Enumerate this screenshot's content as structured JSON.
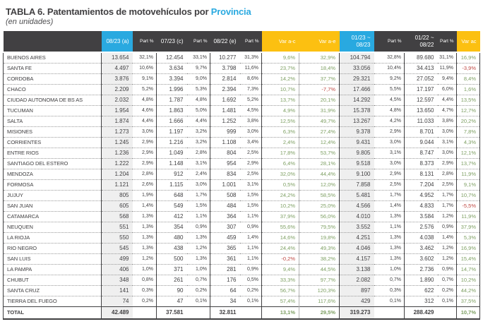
{
  "title": {
    "prefix": "TABLA 6. Patentamientos de motovehículos por ",
    "highlight": "Provincia",
    "subtitle": "(en unidades)"
  },
  "colors": {
    "header_dark": "#414042",
    "accent_cyan": "#29a9e0",
    "accent_yellow": "#fcc011",
    "positive_green": "#7d9f62",
    "negative_red": "#bf4742",
    "column_shading": "#efefef"
  },
  "table": {
    "columns": [
      {
        "id": "province",
        "label": "",
        "type": "name",
        "header_bg": "dark",
        "shaded": false
      },
      {
        "id": "m0823",
        "label": "08/23 (a)",
        "type": "num",
        "header_bg": "cyan",
        "shaded": true
      },
      {
        "id": "part_a",
        "label": "Part %",
        "type": "part",
        "header_bg": "dark",
        "shaded": false
      },
      {
        "id": "m0723",
        "label": "07/23 (c)",
        "type": "num",
        "header_bg": "dark",
        "shaded": false
      },
      {
        "id": "part_c",
        "label": "Part %",
        "type": "part",
        "header_bg": "dark",
        "shaded": false
      },
      {
        "id": "m0822",
        "label": "08/22 (e)",
        "type": "num",
        "header_bg": "dark",
        "shaded": false
      },
      {
        "id": "part_e",
        "label": "Part %",
        "type": "part",
        "header_bg": "dark",
        "shaded": false
      },
      {
        "id": "var_a_c",
        "label": "Var a-c",
        "type": "var",
        "header_bg": "yellow",
        "shaded": false
      },
      {
        "id": "var_a_e",
        "label": "Var a-e",
        "type": "var",
        "header_bg": "yellow",
        "shaded": false
      },
      {
        "id": "ytd_23",
        "label": "01/23 ~\n08/23",
        "type": "num",
        "header_bg": "cyan",
        "shaded": true
      },
      {
        "id": "part_ytd23",
        "label": "Part %",
        "type": "part",
        "header_bg": "dark",
        "shaded": false
      },
      {
        "id": "ytd_22",
        "label": "01/22 ~\n08/22",
        "type": "num",
        "header_bg": "dark",
        "shaded": false
      },
      {
        "id": "part_ytd22",
        "label": "Part %",
        "type": "part",
        "header_bg": "dark",
        "shaded": false
      },
      {
        "id": "var_ac",
        "label": "Var ac",
        "type": "var",
        "header_bg": "yellow",
        "shaded": false
      }
    ],
    "rows": [
      [
        "BUENOS AIRES",
        "13.654",
        "32,1%",
        "12.454",
        "33,1%",
        "10.277",
        "31,3%",
        "9,6%",
        "32,9%",
        "104.794",
        "32,8%",
        "89.680",
        "31,1%",
        "16,9%"
      ],
      [
        "SANTA FE",
        "4.497",
        "10,6%",
        "3.634",
        "9,7%",
        "3.798",
        "11,6%",
        "23,7%",
        "18,4%",
        "33.056",
        "10,4%",
        "34.413",
        "11,9%",
        "-3,9%"
      ],
      [
        "CORDOBA",
        "3.876",
        "9,1%",
        "3.394",
        "9,0%",
        "2.814",
        "8,6%",
        "14,2%",
        "37,7%",
        "29.321",
        "9,2%",
        "27.052",
        "9,4%",
        "8,4%"
      ],
      [
        "CHACO",
        "2.209",
        "5,2%",
        "1.996",
        "5,3%",
        "2.394",
        "7,3%",
        "10,7%",
        "-7,7%",
        "17.466",
        "5,5%",
        "17.197",
        "6,0%",
        "1,6%"
      ],
      [
        "CIUDAD AUTONOMA DE BS AS",
        "2.032",
        "4,8%",
        "1.787",
        "4,8%",
        "1.692",
        "5,2%",
        "13,7%",
        "20,1%",
        "14.292",
        "4,5%",
        "12.597",
        "4,4%",
        "13,5%"
      ],
      [
        "TUCUMAN",
        "1.954",
        "4,6%",
        "1.863",
        "5,0%",
        "1.481",
        "4,5%",
        "4,9%",
        "31,9%",
        "15.378",
        "4,8%",
        "13.650",
        "4,7%",
        "12,7%"
      ],
      [
        "SALTA",
        "1.874",
        "4,4%",
        "1.666",
        "4,4%",
        "1.252",
        "3,8%",
        "12,5%",
        "49,7%",
        "13.267",
        "4,2%",
        "11.033",
        "3,8%",
        "20,2%"
      ],
      [
        "MISIONES",
        "1.273",
        "3,0%",
        "1.197",
        "3,2%",
        "999",
        "3,0%",
        "6,3%",
        "27,4%",
        "9.378",
        "2,9%",
        "8.701",
        "3,0%",
        "7,8%"
      ],
      [
        "CORRIENTES",
        "1.245",
        "2,9%",
        "1.216",
        "3,2%",
        "1.108",
        "3,4%",
        "2,4%",
        "12,4%",
        "9.431",
        "3,0%",
        "9.044",
        "3,1%",
        "4,3%"
      ],
      [
        "ENTRE RIOS",
        "1.236",
        "2,9%",
        "1.049",
        "2,8%",
        "804",
        "2,5%",
        "17,8%",
        "53,7%",
        "9.805",
        "3,1%",
        "8.747",
        "3,0%",
        "12,1%"
      ],
      [
        "SANTIAGO DEL ESTERO",
        "1.222",
        "2,9%",
        "1.148",
        "3,1%",
        "954",
        "2,9%",
        "6,4%",
        "28,1%",
        "9.518",
        "3,0%",
        "8.373",
        "2,9%",
        "13,7%"
      ],
      [
        "MENDOZA",
        "1.204",
        "2,8%",
        "912",
        "2,4%",
        "834",
        "2,5%",
        "32,0%",
        "44,4%",
        "9.100",
        "2,9%",
        "8.131",
        "2,8%",
        "11,9%"
      ],
      [
        "FORMOSA",
        "1.121",
        "2,6%",
        "1.115",
        "3,0%",
        "1.001",
        "3,1%",
        "0,5%",
        "12,0%",
        "7.858",
        "2,5%",
        "7.204",
        "2,5%",
        "9,1%"
      ],
      [
        "JUJUY",
        "805",
        "1,9%",
        "648",
        "1,7%",
        "508",
        "1,5%",
        "24,2%",
        "58,5%",
        "5.481",
        "1,7%",
        "4.952",
        "1,7%",
        "10,7%"
      ],
      [
        "SAN JUAN",
        "605",
        "1,4%",
        "549",
        "1,5%",
        "484",
        "1,5%",
        "10,2%",
        "25,0%",
        "4.566",
        "1,4%",
        "4.833",
        "1,7%",
        "-5,5%"
      ],
      [
        "CATAMARCA",
        "568",
        "1,3%",
        "412",
        "1,1%",
        "364",
        "1,1%",
        "37,9%",
        "56,0%",
        "4.010",
        "1,3%",
        "3.584",
        "1,2%",
        "11,9%"
      ],
      [
        "NEUQUEN",
        "551",
        "1,3%",
        "354",
        "0,9%",
        "307",
        "0,9%",
        "55,6%",
        "79,5%",
        "3.552",
        "1,1%",
        "2.576",
        "0,9%",
        "37,9%"
      ],
      [
        "LA RIOJA",
        "550",
        "1,3%",
        "480",
        "1,3%",
        "459",
        "1,4%",
        "14,6%",
        "19,8%",
        "4.251",
        "1,3%",
        "4.038",
        "1,4%",
        "5,3%"
      ],
      [
        "RIO NEGRO",
        "545",
        "1,3%",
        "438",
        "1,2%",
        "365",
        "1,1%",
        "24,4%",
        "49,3%",
        "4.046",
        "1,3%",
        "3.462",
        "1,2%",
        "16,9%"
      ],
      [
        "SAN LUIS",
        "499",
        "1,2%",
        "500",
        "1,3%",
        "361",
        "1,1%",
        "-0,2%",
        "38,2%",
        "4.157",
        "1,3%",
        "3.602",
        "1,2%",
        "15,4%"
      ],
      [
        "LA PAMPA",
        "406",
        "1,0%",
        "371",
        "1,0%",
        "281",
        "0,9%",
        "9,4%",
        "44,5%",
        "3.138",
        "1,0%",
        "2.736",
        "0,9%",
        "14,7%"
      ],
      [
        "CHUBUT",
        "348",
        "0,8%",
        "261",
        "0,7%",
        "176",
        "0,5%",
        "33,3%",
        "97,7%",
        "2.082",
        "0,7%",
        "1.890",
        "0,7%",
        "10,2%"
      ],
      [
        "SANTA CRUZ",
        "141",
        "0,3%",
        "90",
        "0,2%",
        "64",
        "0,2%",
        "56,7%",
        "120,3%",
        "897",
        "0,3%",
        "622",
        "0,2%",
        "44,2%"
      ],
      [
        "TIERRA DEL FUEGO",
        "74",
        "0,2%",
        "47",
        "0,1%",
        "34",
        "0,1%",
        "57,4%",
        "117,6%",
        "429",
        "0,1%",
        "312",
        "0,1%",
        "37,5%"
      ]
    ],
    "total": [
      "TOTAL",
      "42.489",
      "",
      "37.581",
      "",
      "32.811",
      "",
      "13,1%",
      "29,5%",
      "319.273",
      "",
      "288.429",
      "",
      "10,7%"
    ]
  }
}
